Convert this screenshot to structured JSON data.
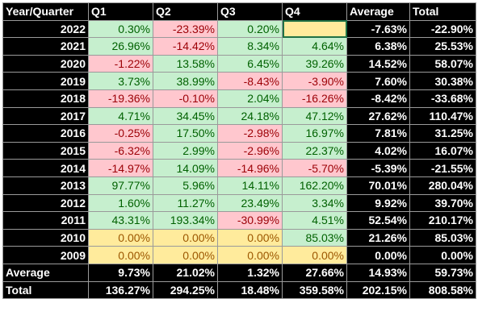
{
  "headers": [
    "Year/Quarter",
    "Q1",
    "Q2",
    "Q3",
    "Q4",
    "Average",
    "Total"
  ],
  "colors": {
    "positive_fill": "#c6efce",
    "negative_fill": "#ffc7ce",
    "zero_fill": "#ffeb9c",
    "header_fill": "#000000"
  },
  "rows": [
    {
      "year": "2022",
      "q": [
        "0.30%",
        "-23.39%",
        "0.20%",
        ""
      ],
      "avg": "-7.63%",
      "total": "-22.90%"
    },
    {
      "year": "2021",
      "q": [
        "26.96%",
        "-14.42%",
        "8.34%",
        "4.64%"
      ],
      "avg": "6.38%",
      "total": "25.53%"
    },
    {
      "year": "2020",
      "q": [
        "-1.22%",
        "13.58%",
        "6.45%",
        "39.26%"
      ],
      "avg": "14.52%",
      "total": "58.07%"
    },
    {
      "year": "2019",
      "q": [
        "3.73%",
        "38.99%",
        "-8.43%",
        "-3.90%"
      ],
      "avg": "7.60%",
      "total": "30.38%"
    },
    {
      "year": "2018",
      "q": [
        "-19.36%",
        "-0.10%",
        "2.04%",
        "-16.26%"
      ],
      "avg": "-8.42%",
      "total": "-33.68%"
    },
    {
      "year": "2017",
      "q": [
        "4.71%",
        "34.45%",
        "24.18%",
        "47.12%"
      ],
      "avg": "27.62%",
      "total": "110.47%"
    },
    {
      "year": "2016",
      "q": [
        "-0.25%",
        "17.50%",
        "-2.98%",
        "16.97%"
      ],
      "avg": "7.81%",
      "total": "31.25%"
    },
    {
      "year": "2015",
      "q": [
        "-6.32%",
        "2.99%",
        "-2.96%",
        "22.37%"
      ],
      "avg": "4.02%",
      "total": "16.07%"
    },
    {
      "year": "2014",
      "q": [
        "-14.97%",
        "14.09%",
        "-14.96%",
        "-5.70%"
      ],
      "avg": "-5.39%",
      "total": "-21.55%"
    },
    {
      "year": "2013",
      "q": [
        "97.77%",
        "5.96%",
        "14.11%",
        "162.20%"
      ],
      "avg": "70.01%",
      "total": "280.04%"
    },
    {
      "year": "2012",
      "q": [
        "1.60%",
        "11.27%",
        "23.49%",
        "3.34%"
      ],
      "avg": "9.92%",
      "total": "39.70%"
    },
    {
      "year": "2011",
      "q": [
        "43.31%",
        "193.34%",
        "-30.99%",
        "4.51%"
      ],
      "avg": "52.54%",
      "total": "210.17%"
    },
    {
      "year": "2010",
      "q": [
        "0.00%",
        "0.00%",
        "0.00%",
        "85.03%"
      ],
      "avg": "21.26%",
      "total": "85.03%"
    },
    {
      "year": "2009",
      "q": [
        "0.00%",
        "0.00%",
        "0.00%",
        "0.00%"
      ],
      "avg": "0.00%",
      "total": "0.00%"
    }
  ],
  "footer": [
    {
      "label": "Average",
      "values": [
        "9.73%",
        "21.02%",
        "1.32%",
        "27.66%",
        "14.93%",
        "59.73%"
      ]
    },
    {
      "label": "Total",
      "values": [
        "136.27%",
        "294.25%",
        "18.48%",
        "359.58%",
        "202.15%",
        "808.58%"
      ]
    }
  ]
}
